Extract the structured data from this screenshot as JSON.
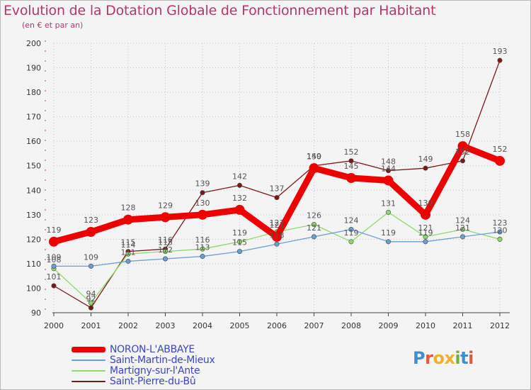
{
  "header": {
    "title": "Evolution de la Dotation Globale de Fonctionnement par Habitant",
    "subtitle": "(en € et par an)"
  },
  "logo": {
    "text": "Proxiti",
    "colors": [
      "#3f8fd0",
      "#e7563a",
      "#f0b030",
      "#f0b030",
      "#6bb33a",
      "#3f8fd0",
      "#e7563a"
    ]
  },
  "chart_data": {
    "type": "line",
    "title": "Evolution de la Dotation Globale de Fonctionnement par Habitant",
    "subtitle": "(en € et par an)",
    "xlabel": "",
    "ylabel": "",
    "ylim": [
      90,
      200
    ],
    "yticks": [
      "90",
      "100",
      "110",
      "120",
      "130",
      "140",
      "150",
      "160",
      "170",
      "180",
      "190",
      "200"
    ],
    "categories": [
      "2000",
      "2001",
      "2002",
      "2003",
      "2004",
      "2005",
      "2006",
      "2007",
      "2008",
      "2009",
      "2010",
      "2011",
      "2012"
    ],
    "legend_position": "bottom-left",
    "series": [
      {
        "name": "NORON-L'ABBAYE",
        "color": "#ee0000",
        "values": [
          119,
          123,
          128,
          129,
          130,
          132,
          121,
          149,
          145,
          144,
          130,
          158,
          152
        ],
        "labels": [
          "119",
          "123",
          "128",
          "129",
          "130",
          "132",
          "121",
          "149",
          "145",
          "144",
          "130",
          "158",
          "152"
        ]
      },
      {
        "name": "Saint-Martin-de-Mieux",
        "color": "#6a9fd4",
        "values": [
          109,
          109,
          111,
          112,
          113,
          115,
          118,
          121,
          124,
          119,
          119,
          121,
          123
        ],
        "labels": [
          "109",
          "109",
          "111",
          "112",
          "113",
          "115",
          "118",
          "121",
          "124",
          "119",
          "119",
          "121",
          "123"
        ]
      },
      {
        "name": "Martigny-sur-l'Ante",
        "color": "#8ed86e",
        "values": [
          108,
          94,
          114,
          115,
          116,
          119,
          123,
          126,
          119,
          131,
          121,
          124,
          120
        ],
        "labels": [
          "108",
          "94",
          "114",
          "115",
          "116",
          "119",
          "123",
          "126",
          "119",
          "131",
          "121",
          "124",
          "120"
        ]
      },
      {
        "name": "Saint-Pierre-du-Bû",
        "color": "#7a1818",
        "values": [
          101,
          92,
          115,
          116,
          139,
          142,
          137,
          150,
          152,
          148,
          149,
          152,
          193
        ],
        "labels": [
          "101",
          "92",
          "115",
          "116",
          "139",
          "142",
          "137",
          "150",
          "152",
          "148",
          "149",
          "152",
          "193"
        ]
      }
    ]
  }
}
